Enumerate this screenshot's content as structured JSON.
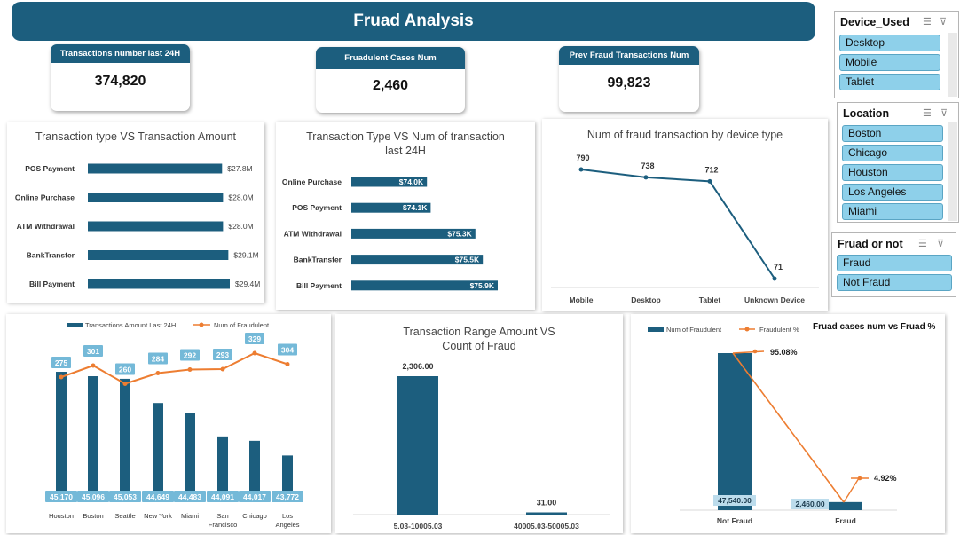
{
  "header": {
    "title": "Fruad Analysis"
  },
  "kpis": [
    {
      "label": "Transactions number  last 24H",
      "value": "374,820"
    },
    {
      "label": "Fruadulent  Cases Num",
      "value": "2,460"
    },
    {
      "label": "Prev Fraud Transactions Num",
      "value": "99,823"
    }
  ],
  "slicers": {
    "device": {
      "title": "Device_Used",
      "items": [
        "Desktop",
        "Mobile",
        "Tablet"
      ]
    },
    "location": {
      "title": "Location",
      "items": [
        "Boston",
        "Chicago",
        "Houston",
        "Los Angeles",
        "Miami"
      ]
    },
    "fraud": {
      "title": "Fruad or not",
      "items": [
        "Fraud",
        "Not Fraud"
      ]
    }
  },
  "chart_data": [
    {
      "id": "type_amount",
      "type": "bar",
      "orientation": "horizontal",
      "title": "Transaction type VS Transaction Amount",
      "categories": [
        "POS Payment",
        "Online Purchase",
        "ATM Withdrawal",
        "BankTransfer",
        "Bill Payment"
      ],
      "values": [
        27.8,
        28.0,
        28.0,
        29.1,
        29.4
      ],
      "labels": [
        "$27.8M",
        "$28.0M",
        "$28.0M",
        "$29.1M",
        "$29.4M"
      ],
      "color": "#1c5e7e"
    },
    {
      "id": "type_count",
      "type": "bar",
      "orientation": "horizontal",
      "title": "Transaction Type VS Num of transaction last 24H",
      "categories": [
        "Online Purchase",
        "POS Payment",
        "ATM Withdrawal",
        "BankTransfer",
        "Bill Payment"
      ],
      "values": [
        74.0,
        74.1,
        75.3,
        75.5,
        75.9
      ],
      "labels": [
        "$74.0K",
        "$74.1K",
        "$75.3K",
        "$75.5K",
        "$75.9K"
      ],
      "color": "#1c5e7e"
    },
    {
      "id": "device_fraud",
      "type": "line",
      "title": "Num of fraud transaction by device type",
      "categories": [
        "Mobile",
        "Desktop",
        "Tablet",
        "Unknown Device"
      ],
      "values": [
        790,
        738,
        712,
        71
      ],
      "color": "#1c5e7e"
    },
    {
      "id": "city",
      "type": "bar",
      "legend": [
        "Transactions Amount Last 24H",
        "Num of Fraudulent"
      ],
      "categories": [
        "Houston",
        "Boston",
        "Seattle",
        "New York",
        "Miami",
        "San Francisco",
        "Chicago",
        "Los Angeles"
      ],
      "series": [
        {
          "name": "Transactions Amount Last 24H",
          "values": [
            45170,
            45096,
            45053,
            44649,
            44483,
            44091,
            44017,
            43772
          ],
          "labels": [
            "45,170",
            "45,096",
            "45,053",
            "44,649",
            "44,483",
            "44,091",
            "44,017",
            "43,772"
          ],
          "color": "#1c5e7e"
        },
        {
          "name": "Num of Fraudulent",
          "values": [
            275,
            301,
            260,
            284,
            292,
            293,
            329,
            304
          ],
          "labels": [
            "275",
            "301",
            "260",
            "284",
            "292",
            "293",
            "329",
            "304"
          ],
          "color": "#ed7d31"
        }
      ]
    },
    {
      "id": "range",
      "type": "bar",
      "title": "Transaction Range Amount  VS Count of Fraud",
      "categories": [
        "5.03-10005.03",
        "40005.03-50005.03"
      ],
      "values": [
        2306,
        31
      ],
      "labels": [
        "2,306.00",
        "31.00"
      ],
      "color": "#1c5e7e"
    },
    {
      "id": "fraud_pct",
      "type": "bar",
      "title": "Fruad cases num vs Fruad %",
      "legend": [
        "Num of Fraudulent",
        "Fraudulent %"
      ],
      "categories": [
        "Not Fraud",
        "Fraud"
      ],
      "series": [
        {
          "name": "Num of Fraudulent",
          "values": [
            47540,
            2460
          ],
          "labels": [
            "47,540.00",
            "2,460.00"
          ],
          "color": "#1c5e7e"
        },
        {
          "name": "Fraudulent %",
          "values": [
            95.08,
            4.92
          ],
          "labels": [
            "95.08%",
            "4.92%"
          ],
          "color": "#ed7d31"
        }
      ]
    }
  ]
}
